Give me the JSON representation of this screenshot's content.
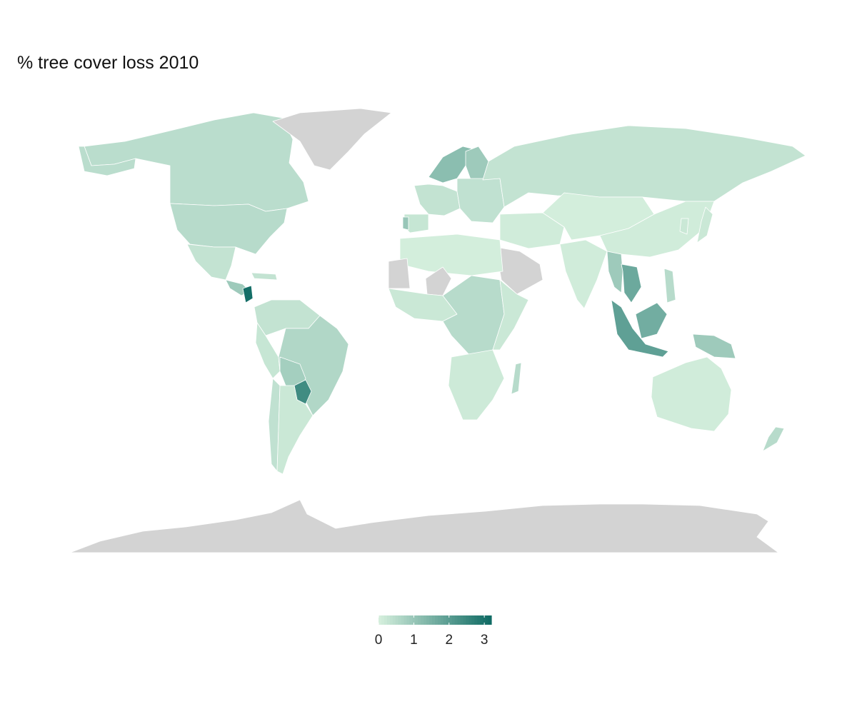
{
  "map": {
    "title": "% tree cover loss 2010",
    "color_scale": {
      "low_color": "#d6f0de",
      "high_color": "#0e6a63",
      "no_data_color": "#d3d3d3",
      "domain": [
        0,
        3.2
      ],
      "ticks": [
        0,
        1,
        2,
        3
      ],
      "tick_labels": [
        "0",
        "1",
        "2",
        "3"
      ]
    },
    "regions": [
      {
        "name": "Canada",
        "value": 0.45
      },
      {
        "name": "United States",
        "value": 0.5
      },
      {
        "name": "Alaska",
        "value": 0.45
      },
      {
        "name": "Greenland",
        "value": null
      },
      {
        "name": "Mexico",
        "value": 0.3
      },
      {
        "name": "Central America",
        "value": 0.9
      },
      {
        "name": "Nicaragua",
        "value": 3.1
      },
      {
        "name": "Cuba",
        "value": 0.3
      },
      {
        "name": "Colombia / Venezuela",
        "value": 0.3
      },
      {
        "name": "Peru / Ecuador",
        "value": 0.25
      },
      {
        "name": "Brazil",
        "value": 0.6
      },
      {
        "name": "Bolivia",
        "value": 0.8
      },
      {
        "name": "Paraguay",
        "value": 2.4
      },
      {
        "name": "Chile",
        "value": 0.35
      },
      {
        "name": "Argentina",
        "value": 0.2
      },
      {
        "name": "Scandinavia",
        "value": 1.2
      },
      {
        "name": "Finland",
        "value": 0.9
      },
      {
        "name": "Western Europe",
        "value": 0.3
      },
      {
        "name": "Iberia",
        "value": 0.25
      },
      {
        "name": "Portugal",
        "value": 1.0
      },
      {
        "name": "Eastern Europe",
        "value": 0.35
      },
      {
        "name": "Russia",
        "value": 0.3
      },
      {
        "name": "Middle East",
        "value": 0.1
      },
      {
        "name": "Arabian Peninsula",
        "value": null
      },
      {
        "name": "North Africa",
        "value": 0.05
      },
      {
        "name": "Western Sahara / Mauritania",
        "value": null
      },
      {
        "name": "Mali",
        "value": null
      },
      {
        "name": "West Africa",
        "value": 0.2
      },
      {
        "name": "Central Africa",
        "value": 0.5
      },
      {
        "name": "East Africa",
        "value": 0.2
      },
      {
        "name": "Southern Africa",
        "value": 0.15
      },
      {
        "name": "Madagascar",
        "value": 0.5
      },
      {
        "name": "Central Asia",
        "value": 0.05
      },
      {
        "name": "India",
        "value": 0.1
      },
      {
        "name": "China",
        "value": 0.1
      },
      {
        "name": "Japan",
        "value": 0.2
      },
      {
        "name": "Korea",
        "value": 0.2
      },
      {
        "name": "Myanmar / Thailand",
        "value": 0.9
      },
      {
        "name": "Vietnam / Cambodia",
        "value": 1.7
      },
      {
        "name": "Philippines",
        "value": 0.5
      },
      {
        "name": "Sumatra / Malaysia",
        "value": 1.9
      },
      {
        "name": "Borneo",
        "value": 1.6
      },
      {
        "name": "New Guinea",
        "value": 0.9
      },
      {
        "name": "Australia",
        "value": 0.1
      },
      {
        "name": "New Zealand",
        "value": 0.5
      },
      {
        "name": "Antarctica",
        "value": null
      }
    ]
  }
}
